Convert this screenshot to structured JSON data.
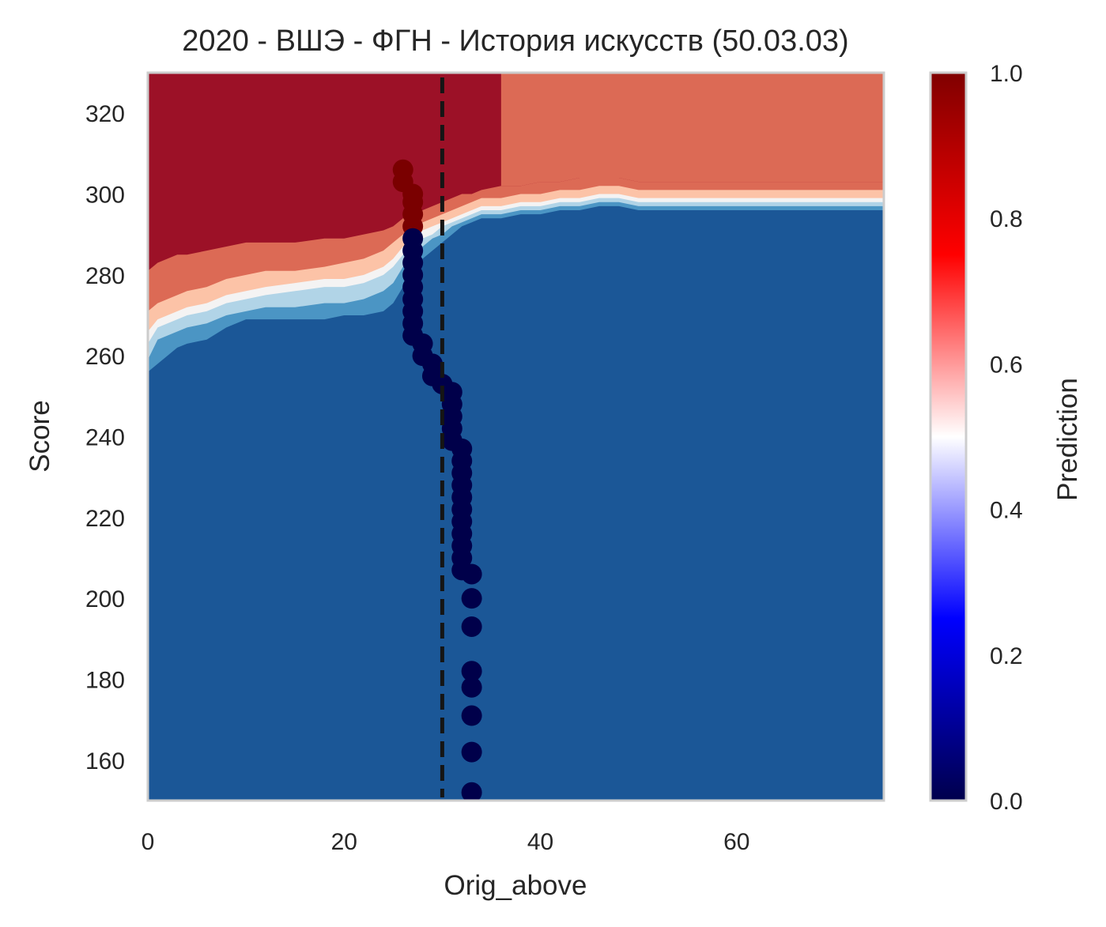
{
  "chart_data": {
    "type": "contour_scatter",
    "title": "2020 - ВШЭ - ФГН - История искусств (50.03.03)",
    "xlabel": "Orig_above",
    "ylabel": "Score",
    "xlim": [
      0,
      75
    ],
    "ylim": [
      150,
      330
    ],
    "xticks": [
      0,
      20,
      40,
      60
    ],
    "yticks": [
      160,
      180,
      200,
      220,
      240,
      260,
      280,
      300,
      320
    ],
    "grid": false,
    "threshold_x": 30,
    "colorbar": {
      "label": "Prediction",
      "range": [
        0,
        1
      ],
      "ticks": [
        "0.0",
        "0.2",
        "0.4",
        "0.6",
        "0.8",
        "1.0"
      ],
      "colormap": "seismic"
    },
    "contour_levels": [
      {
        "level": "p<0.2",
        "color": "#1b5797"
      },
      {
        "level": "0.2-0.3",
        "color": "#4b95c4"
      },
      {
        "level": "0.3-0.4",
        "color": "#b1d4e7"
      },
      {
        "level": "0.4-0.5",
        "color": "#f4f3f3"
      },
      {
        "level": "0.5-0.6",
        "color": "#fcc3a7"
      },
      {
        "level": "0.6-0.8",
        "color": "#dc6a55"
      },
      {
        "level": "p>0.8",
        "color": "#9c1127"
      }
    ],
    "boundaries": {
      "x": [
        0,
        1,
        2,
        3,
        4,
        6,
        8,
        10,
        12,
        15,
        18,
        20,
        22,
        24,
        25,
        26,
        27,
        28,
        29,
        30,
        31,
        32,
        33,
        34,
        36,
        38,
        40,
        42,
        44,
        46,
        48,
        50,
        55,
        60,
        65,
        70,
        75
      ],
      "b02": [
        256,
        258,
        260,
        262,
        263,
        264,
        267,
        269,
        269,
        269,
        269,
        270,
        270,
        271,
        273,
        277,
        281,
        284,
        286,
        288,
        290,
        292,
        293,
        294,
        294,
        295,
        295,
        296,
        296,
        297,
        297,
        296,
        296,
        296,
        296,
        296,
        296
      ],
      "b03": [
        259,
        264,
        265,
        266,
        267,
        268,
        270,
        271,
        272,
        272,
        273,
        273,
        274,
        276,
        278,
        282,
        285,
        287,
        289,
        290,
        292,
        293,
        294,
        295,
        295,
        296,
        296,
        297,
        297,
        298,
        298,
        297,
        297,
        297,
        297,
        297,
        297
      ],
      "b04": [
        263,
        267,
        268,
        269,
        270,
        271,
        273,
        274,
        275,
        276,
        277,
        277,
        278,
        280,
        282,
        285,
        287,
        289,
        290,
        292,
        293,
        294,
        295,
        296,
        296,
        297,
        297,
        298,
        298,
        299,
        299,
        298,
        298,
        298,
        298,
        298,
        298
      ],
      "b05": [
        266,
        269,
        270,
        271,
        272,
        273,
        275,
        276,
        277,
        278,
        279,
        279,
        280,
        282,
        284,
        287,
        289,
        291,
        292,
        293,
        294,
        295,
        296,
        297,
        297,
        298,
        298,
        299,
        299,
        300,
        300,
        299,
        299,
        299,
        299,
        299,
        299
      ],
      "b06": [
        271,
        273,
        274,
        275,
        276,
        277,
        279,
        280,
        281,
        281,
        282,
        283,
        284,
        286,
        288,
        290,
        292,
        293,
        294,
        295,
        296,
        297,
        298,
        299,
        299,
        300,
        300,
        301,
        301,
        302,
        302,
        301,
        301,
        301,
        301,
        301,
        301
      ],
      "b08": [
        281,
        283,
        284,
        285,
        285,
        286,
        287,
        288,
        288,
        288,
        289,
        289,
        290,
        291,
        292,
        294,
        295,
        296,
        297,
        298,
        299,
        300,
        300,
        301,
        302,
        302,
        303,
        303,
        304,
        304,
        304,
        303,
        303,
        303,
        303,
        303,
        303
      ]
    },
    "upper_band": {
      "x_from": 36,
      "x_to": 75,
      "level": "0.6-0.8",
      "above_boundary": "b08"
    },
    "points_red": [
      {
        "x": 26,
        "y": 306
      },
      {
        "x": 26,
        "y": 303
      },
      {
        "x": 27,
        "y": 300
      },
      {
        "x": 27,
        "y": 298
      },
      {
        "x": 27,
        "y": 295
      },
      {
        "x": 27,
        "y": 292
      }
    ],
    "points_blue": [
      {
        "x": 27,
        "y": 289
      },
      {
        "x": 27,
        "y": 286
      },
      {
        "x": 27,
        "y": 283
      },
      {
        "x": 27,
        "y": 280
      },
      {
        "x": 27,
        "y": 277
      },
      {
        "x": 27,
        "y": 274
      },
      {
        "x": 27,
        "y": 271
      },
      {
        "x": 27,
        "y": 268
      },
      {
        "x": 27,
        "y": 265
      },
      {
        "x": 28,
        "y": 263
      },
      {
        "x": 28,
        "y": 260
      },
      {
        "x": 29,
        "y": 258
      },
      {
        "x": 29,
        "y": 255
      },
      {
        "x": 30,
        "y": 253
      },
      {
        "x": 31,
        "y": 251
      },
      {
        "x": 31,
        "y": 248
      },
      {
        "x": 31,
        "y": 245
      },
      {
        "x": 31,
        "y": 242
      },
      {
        "x": 31,
        "y": 239
      },
      {
        "x": 32,
        "y": 237
      },
      {
        "x": 32,
        "y": 234
      },
      {
        "x": 32,
        "y": 231
      },
      {
        "x": 32,
        "y": 228
      },
      {
        "x": 32,
        "y": 225
      },
      {
        "x": 32,
        "y": 222
      },
      {
        "x": 32,
        "y": 219
      },
      {
        "x": 32,
        "y": 216
      },
      {
        "x": 32,
        "y": 213
      },
      {
        "x": 32,
        "y": 210
      },
      {
        "x": 32,
        "y": 207
      },
      {
        "x": 33,
        "y": 206
      },
      {
        "x": 33,
        "y": 200
      },
      {
        "x": 33,
        "y": 193
      },
      {
        "x": 33,
        "y": 182
      },
      {
        "x": 33,
        "y": 178
      },
      {
        "x": 33,
        "y": 171
      },
      {
        "x": 33,
        "y": 162
      },
      {
        "x": 33,
        "y": 152
      }
    ],
    "colors": {
      "point_red": "#7a0000",
      "point_blue": "#00004a",
      "threshold_line": "#151515",
      "frame": "#cccccc"
    }
  }
}
